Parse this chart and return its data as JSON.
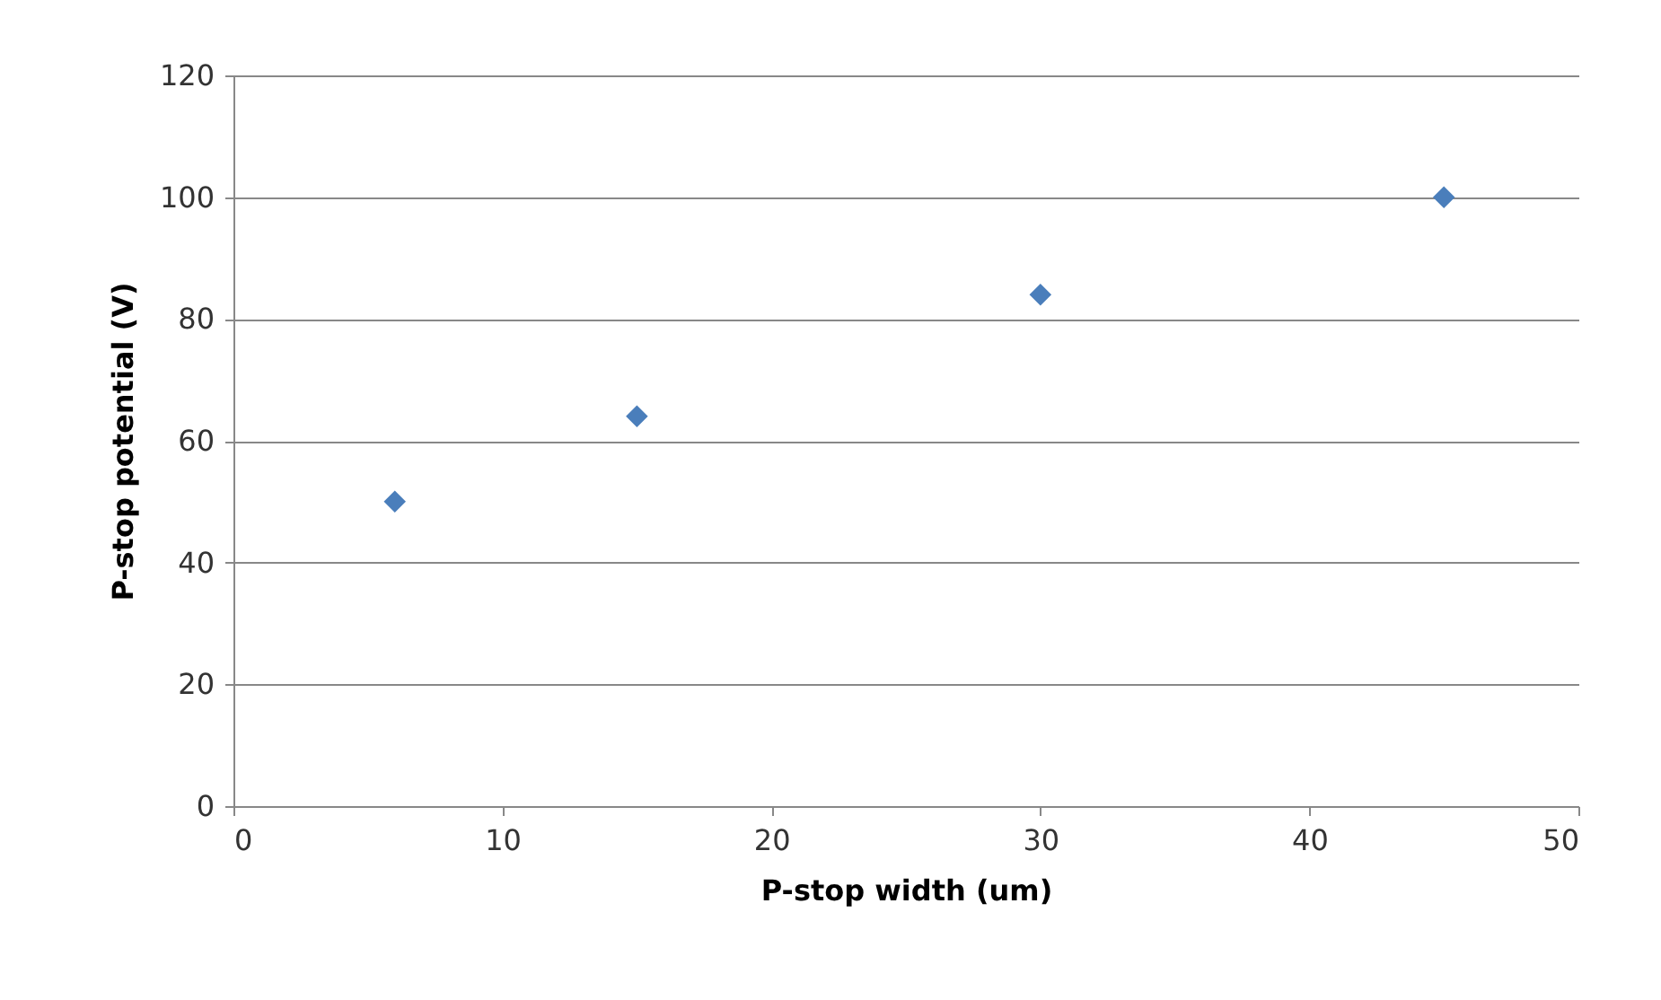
{
  "chart_data": {
    "type": "scatter",
    "xlabel": "P-stop width (um)",
    "ylabel": "P-stop potential (V)",
    "x": [
      6,
      15,
      30,
      45
    ],
    "series": [
      {
        "color": "#4a7ebb",
        "values": [
          50,
          64,
          84,
          100
        ]
      }
    ],
    "xlim": [
      0,
      50
    ],
    "xticks": [
      0,
      10,
      20,
      30,
      40,
      50
    ],
    "ylim": [
      0,
      120
    ],
    "yticks": [
      0,
      20,
      40,
      60,
      80,
      100,
      120
    ],
    "grid": "y",
    "marker": "diamond",
    "legend": false
  }
}
